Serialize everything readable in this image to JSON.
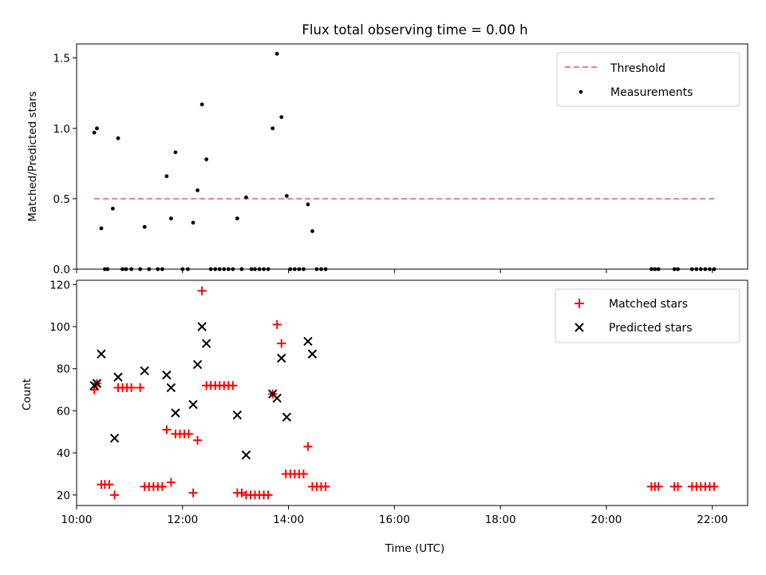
{
  "chart_data": [
    {
      "type": "scatter",
      "title": "Flux total observing time = 0.00 h",
      "xlabel": "",
      "ylabel": "Matched/Predicted stars",
      "xlim": [
        "10:00",
        "22:40"
      ],
      "ylim": [
        0,
        1.6
      ],
      "yticks": [
        "0.0",
        "0.5",
        "1.0",
        "1.5"
      ],
      "legend": {
        "placement": "top-right",
        "entries": [
          "Threshold",
          "Measurements"
        ]
      },
      "threshold": {
        "name": "Threshold",
        "value": 0.5,
        "x_start": "10:20",
        "x_end": "22:05",
        "color": "#f08080"
      },
      "series": [
        {
          "name": "Measurements",
          "marker": "dot",
          "color": "#000000",
          "points": [
            [
              "10:20",
              0.97
            ],
            [
              "10:23",
              1.0
            ],
            [
              "10:28",
              0.29
            ],
            [
              "10:41",
              0.43
            ],
            [
              "10:47",
              0.93
            ],
            [
              "11:17",
              0.3
            ],
            [
              "11:42",
              0.66
            ],
            [
              "11:47",
              0.36
            ],
            [
              "11:52",
              0.83
            ],
            [
              "12:12",
              0.33
            ],
            [
              "12:17",
              0.56
            ],
            [
              "12:22",
              1.17
            ],
            [
              "12:27",
              0.78
            ],
            [
              "13:02",
              0.36
            ],
            [
              "13:12",
              0.51
            ],
            [
              "13:42",
              1.0
            ],
            [
              "13:47",
              1.53
            ],
            [
              "13:52",
              1.08
            ],
            [
              "13:58",
              0.52
            ],
            [
              "14:22",
              0.46
            ],
            [
              "14:27",
              0.27
            ],
            [
              "10:32",
              0.0
            ],
            [
              "10:35",
              0.0
            ],
            [
              "10:52",
              0.0
            ],
            [
              "10:56",
              0.0
            ],
            [
              "11:02",
              0.0
            ],
            [
              "11:12",
              0.0
            ],
            [
              "11:22",
              0.0
            ],
            [
              "11:32",
              0.0
            ],
            [
              "11:37",
              0.0
            ],
            [
              "12:00",
              0.0
            ],
            [
              "12:06",
              0.0
            ],
            [
              "12:32",
              0.0
            ],
            [
              "12:37",
              0.0
            ],
            [
              "12:42",
              0.0
            ],
            [
              "12:47",
              0.0
            ],
            [
              "12:52",
              0.0
            ],
            [
              "12:57",
              0.0
            ],
            [
              "13:07",
              0.0
            ],
            [
              "13:18",
              0.0
            ],
            [
              "13:22",
              0.0
            ],
            [
              "13:27",
              0.0
            ],
            [
              "13:32",
              0.0
            ],
            [
              "13:37",
              0.0
            ],
            [
              "14:02",
              0.0
            ],
            [
              "14:07",
              0.0
            ],
            [
              "14:12",
              0.0
            ],
            [
              "14:17",
              0.0
            ],
            [
              "14:32",
              0.0
            ],
            [
              "14:37",
              0.0
            ],
            [
              "14:42",
              0.0
            ],
            [
              "20:51",
              0.0
            ],
            [
              "20:55",
              0.0
            ],
            [
              "20:59",
              0.0
            ],
            [
              "21:17",
              0.0
            ],
            [
              "21:21",
              0.0
            ],
            [
              "21:37",
              0.0
            ],
            [
              "21:42",
              0.0
            ],
            [
              "21:47",
              0.0
            ],
            [
              "21:52",
              0.0
            ],
            [
              "21:57",
              0.0
            ],
            [
              "22:02",
              0.0
            ]
          ]
        }
      ]
    },
    {
      "type": "scatter",
      "title": "",
      "xlabel": "Time (UTC)",
      "ylabel": "Count",
      "xlim": [
        "10:00",
        "22:40"
      ],
      "ylim": [
        15,
        122
      ],
      "xticks": [
        "10:00",
        "12:00",
        "14:00",
        "16:00",
        "18:00",
        "20:00",
        "22:00"
      ],
      "yticks": [
        "20",
        "40",
        "60",
        "80",
        "100",
        "120"
      ],
      "legend": {
        "placement": "top-right",
        "entries": [
          "Matched stars",
          "Predicted stars"
        ]
      },
      "series": [
        {
          "name": "Matched stars",
          "marker": "plus",
          "color": "#ff0000",
          "points": [
            [
              "10:20",
              70
            ],
            [
              "10:23",
              73
            ],
            [
              "10:28",
              25
            ],
            [
              "10:32",
              25
            ],
            [
              "10:37",
              25
            ],
            [
              "10:43",
              20
            ],
            [
              "10:47",
              71
            ],
            [
              "10:52",
              71
            ],
            [
              "10:57",
              71
            ],
            [
              "11:02",
              71
            ],
            [
              "11:12",
              71
            ],
            [
              "11:17",
              24
            ],
            [
              "11:22",
              24
            ],
            [
              "11:27",
              24
            ],
            [
              "11:32",
              24
            ],
            [
              "11:37",
              24
            ],
            [
              "11:42",
              51
            ],
            [
              "11:47",
              26
            ],
            [
              "11:52",
              49
            ],
            [
              "11:57",
              49
            ],
            [
              "12:02",
              49
            ],
            [
              "12:07",
              49
            ],
            [
              "12:12",
              21
            ],
            [
              "12:17",
              46
            ],
            [
              "12:22",
              117
            ],
            [
              "12:27",
              72
            ],
            [
              "12:32",
              72
            ],
            [
              "12:37",
              72
            ],
            [
              "12:42",
              72
            ],
            [
              "12:47",
              72
            ],
            [
              "12:52",
              72
            ],
            [
              "12:57",
              72
            ],
            [
              "13:02",
              21
            ],
            [
              "13:07",
              21
            ],
            [
              "13:12",
              20
            ],
            [
              "13:17",
              20
            ],
            [
              "13:22",
              20
            ],
            [
              "13:27",
              20
            ],
            [
              "13:32",
              20
            ],
            [
              "13:37",
              20
            ],
            [
              "13:42",
              68
            ],
            [
              "13:47",
              101
            ],
            [
              "13:52",
              92
            ],
            [
              "13:57",
              30
            ],
            [
              "14:02",
              30
            ],
            [
              "14:07",
              30
            ],
            [
              "14:12",
              30
            ],
            [
              "14:17",
              30
            ],
            [
              "14:22",
              43
            ],
            [
              "14:27",
              24
            ],
            [
              "14:32",
              24
            ],
            [
              "14:37",
              24
            ],
            [
              "14:42",
              24
            ],
            [
              "20:51",
              24
            ],
            [
              "20:55",
              24
            ],
            [
              "20:59",
              24
            ],
            [
              "21:17",
              24
            ],
            [
              "21:21",
              24
            ],
            [
              "21:37",
              24
            ],
            [
              "21:42",
              24
            ],
            [
              "21:47",
              24
            ],
            [
              "21:52",
              24
            ],
            [
              "21:57",
              24
            ],
            [
              "22:02",
              24
            ]
          ]
        },
        {
          "name": "Predicted stars",
          "marker": "x",
          "color": "#000000",
          "points": [
            [
              "10:20",
              72
            ],
            [
              "10:23",
              73
            ],
            [
              "10:28",
              87
            ],
            [
              "10:43",
              47
            ],
            [
              "10:47",
              76
            ],
            [
              "11:17",
              79
            ],
            [
              "11:42",
              77
            ],
            [
              "11:47",
              71
            ],
            [
              "11:52",
              59
            ],
            [
              "12:12",
              63
            ],
            [
              "12:17",
              82
            ],
            [
              "12:22",
              100
            ],
            [
              "12:27",
              92
            ],
            [
              "13:02",
              58
            ],
            [
              "13:12",
              39
            ],
            [
              "13:42",
              68
            ],
            [
              "13:47",
              66
            ],
            [
              "13:52",
              85
            ],
            [
              "13:58",
              57
            ],
            [
              "14:22",
              93
            ],
            [
              "14:27",
              87
            ]
          ]
        }
      ]
    }
  ]
}
